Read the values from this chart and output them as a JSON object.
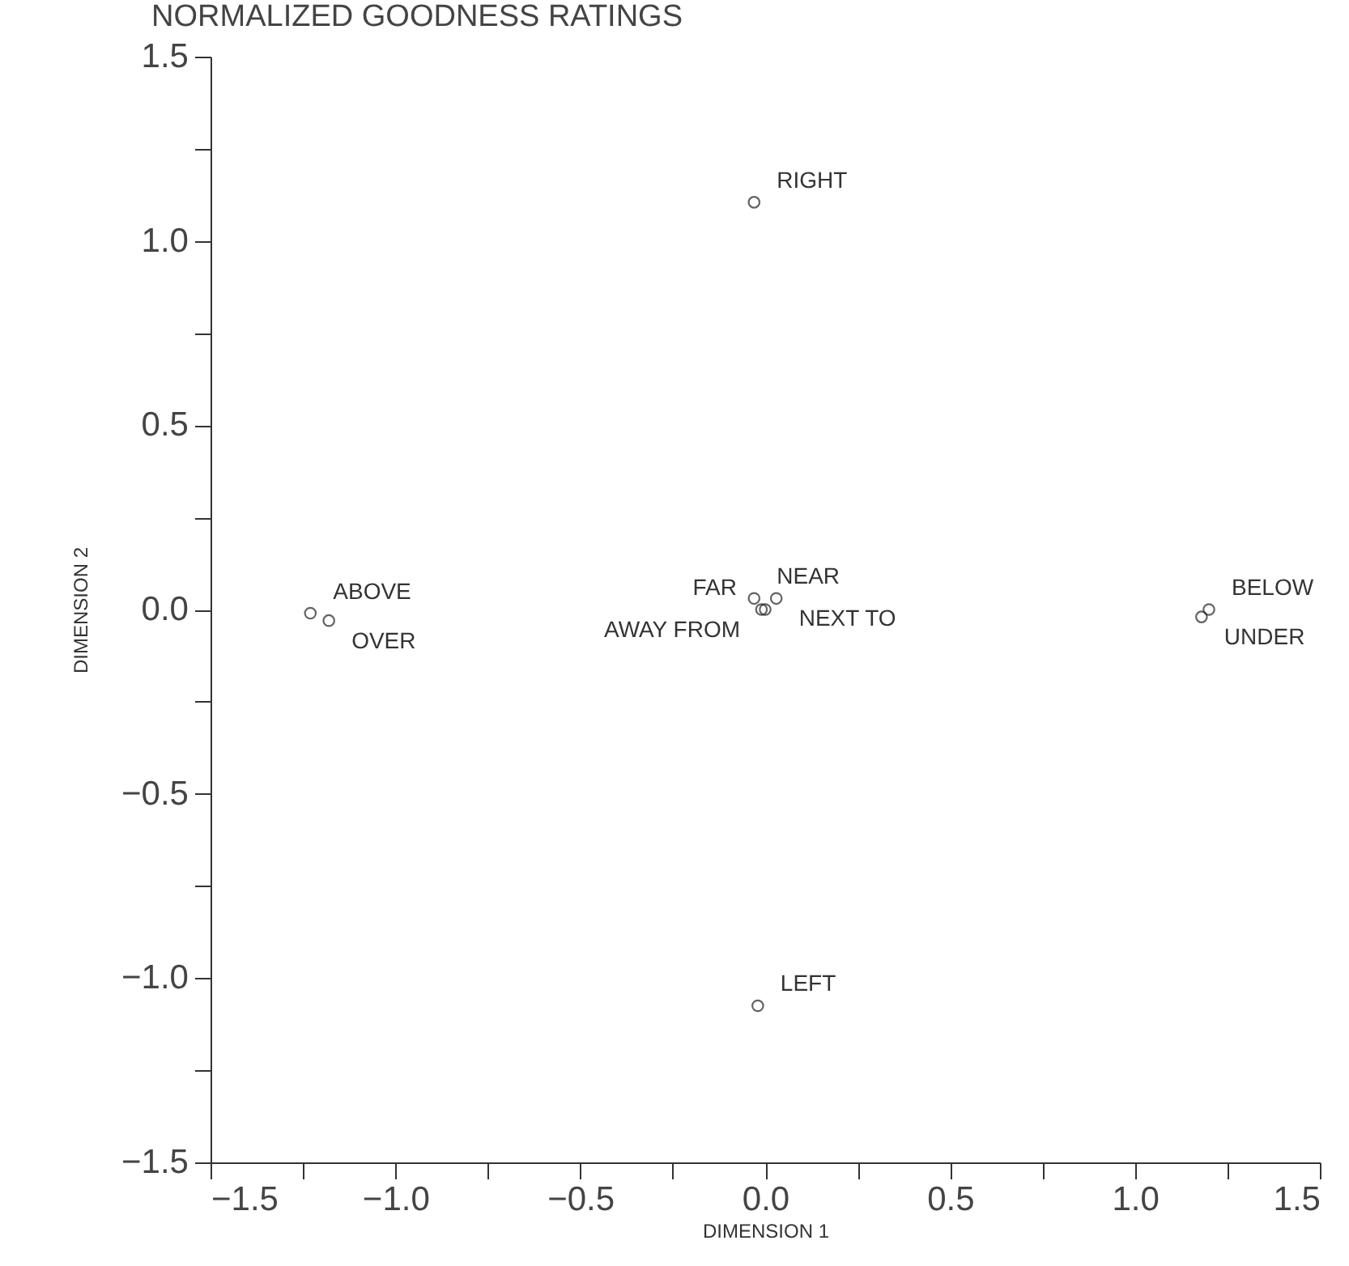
{
  "chart_data": {
    "type": "scatter",
    "title": "NORMALIZED GOODNESS RATINGS",
    "xlabel": "DIMENSION 1",
    "ylabel": "DIMENSION 2",
    "marker": "circle",
    "x": [
      -0.03,
      -0.02,
      -1.23,
      -1.18,
      1.18,
      1.2,
      -0.03,
      0.03,
      -0.01,
      0.0
    ],
    "series": [
      {
        "color": "#222222",
        "values": [
          1.105,
          -1.075,
          -0.01,
          -0.03,
          -0.02,
          0.0,
          0.03,
          0.03,
          0.0,
          0.0
        ]
      }
    ],
    "xlim": [
      -1.5,
      1.5
    ],
    "ylim": [
      -1.5,
      1.5
    ],
    "xticks": [
      {
        "value": -1.5,
        "label": "−1.5"
      },
      {
        "value": -1.25,
        "label": null
      },
      {
        "value": -1.0,
        "label": "−1.0"
      },
      {
        "value": -0.75,
        "label": null
      },
      {
        "value": -0.5,
        "label": "−0.5"
      },
      {
        "value": -0.25,
        "label": null
      },
      {
        "value": 0,
        "label": "0.0"
      },
      {
        "value": 0.25,
        "label": null
      },
      {
        "value": 0.5,
        "label": "0.5"
      },
      {
        "value": 0.75,
        "label": null
      },
      {
        "value": 1.0,
        "label": "1.0"
      },
      {
        "value": 1.25,
        "label": null
      },
      {
        "value": 1.5,
        "label": "1.5"
      }
    ],
    "yticks": [
      {
        "value": -1.5,
        "label": "−1.5"
      },
      {
        "value": -1.25,
        "label": null
      },
      {
        "value": -1.0,
        "label": "−1.0"
      },
      {
        "value": -0.75,
        "label": null
      },
      {
        "value": -0.5,
        "label": "−0.5"
      },
      {
        "value": -0.25,
        "label": null
      },
      {
        "value": 0,
        "label": "0.0"
      },
      {
        "value": 0.25,
        "label": null
      },
      {
        "value": 0.5,
        "label": "0.5"
      },
      {
        "value": 0.75,
        "label": null
      },
      {
        "value": 1.0,
        "label": "1.0"
      },
      {
        "value": 1.25,
        "label": null
      },
      {
        "value": 1.5,
        "label": "1.5"
      }
    ],
    "annotations": [
      {
        "text": "RIGHT",
        "x": -0.03,
        "y": 1.105
      },
      {
        "text": "LEFT",
        "x": -0.02,
        "y": -1.075
      },
      {
        "text": "ABOVE",
        "x": -1.23,
        "y": -0.01
      },
      {
        "text": "OVER",
        "x": -1.18,
        "y": -0.03
      },
      {
        "text": "BELOW",
        "x": 1.2,
        "y": 0.0
      },
      {
        "text": "UNDER",
        "x": 1.18,
        "y": -0.02
      },
      {
        "text": "NEAR",
        "x": -0.03,
        "y": 0.03
      },
      {
        "text": "NEXT TO",
        "x": 0.03,
        "y": 0.03
      },
      {
        "text": "FAR",
        "x": -0.01,
        "y": 0.0
      },
      {
        "text": "AWAY FROM",
        "x": 0.0,
        "y": 0.0
      }
    ]
  }
}
